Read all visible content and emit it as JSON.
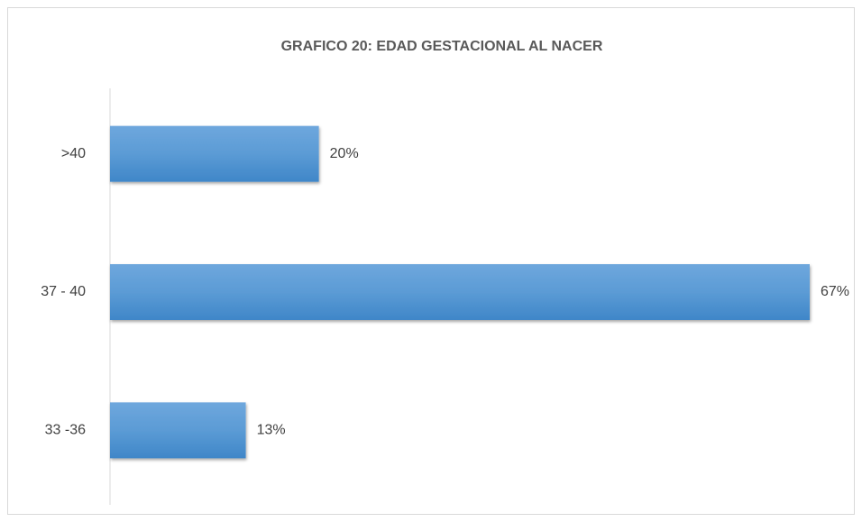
{
  "chart_data": {
    "type": "bar",
    "orientation": "horizontal",
    "title": "GRAFICO 20: EDAD GESTACIONAL AL NACER",
    "categories": [
      ">40",
      "37 - 40",
      "33 -36"
    ],
    "values": [
      20,
      67,
      13
    ],
    "value_labels": [
      "20%",
      "67%",
      "13%"
    ],
    "color": "#5b9bd5"
  }
}
